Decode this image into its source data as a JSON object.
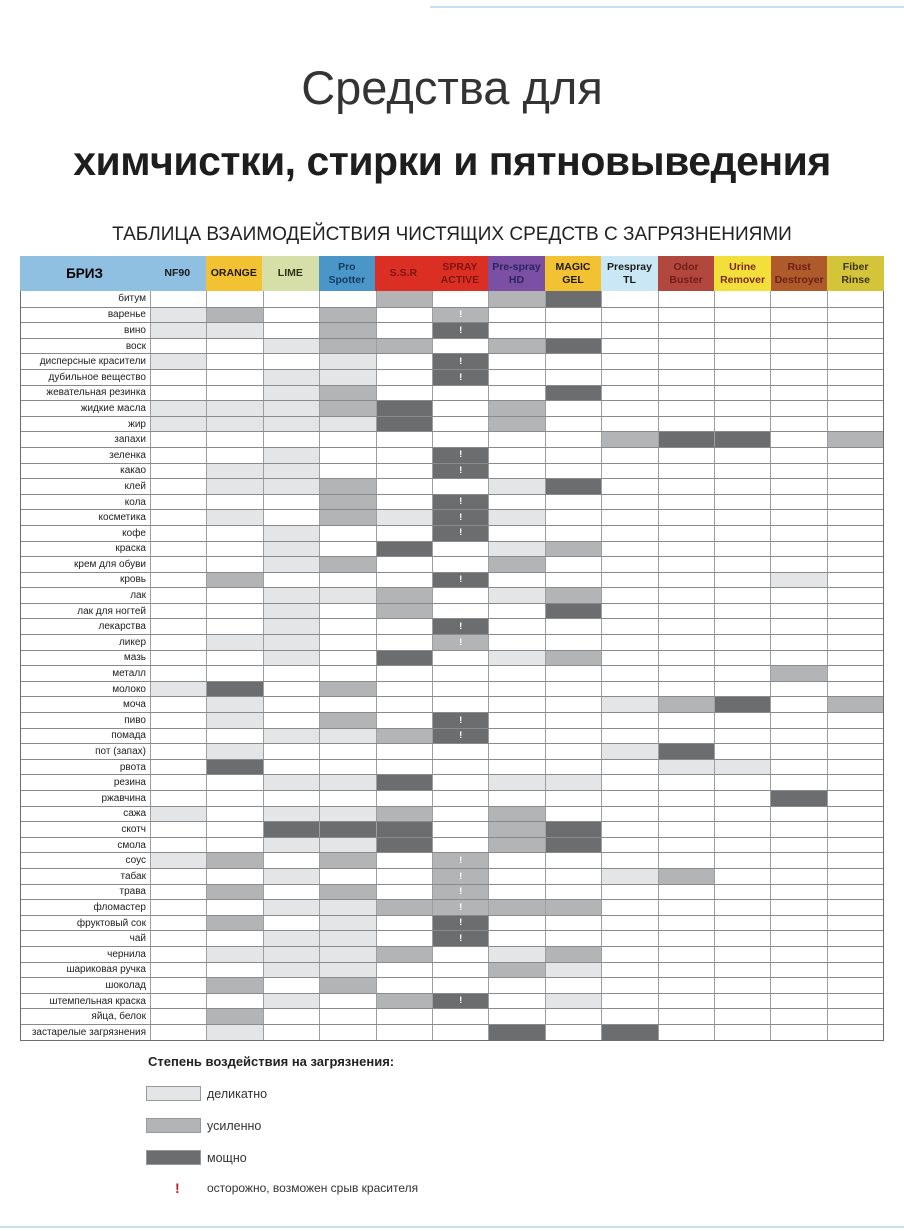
{
  "title_line1": "Средства для",
  "title_line2": "химчистки, стирки и пятновыведения",
  "subtitle": "ТАБЛИЦА ВЗАИМОДЕЙСТВИЯ ЧИСТЯЩИХ СРЕДСТВ С ЗАГРЯЗНЕНИЯМИ",
  "table": {
    "brand_header": "БРИЗ",
    "brand_bg": "#8fc0e2",
    "columns": [
      {
        "label": "NF90",
        "bg": "#8fc0e2",
        "fg": "#1a1a1a"
      },
      {
        "label": "ORANGE",
        "bg": "#f2c233",
        "fg": "#201a08"
      },
      {
        "label": "LIME",
        "bg": "#d6dfa8",
        "fg": "#2b331a"
      },
      {
        "label": "Pro Spotter",
        "bg": "#4b96c9",
        "fg": "#143a5e"
      },
      {
        "label": "S.S.R",
        "bg": "#dc2f23",
        "fg": "#7d1511"
      },
      {
        "label": "SPRAY ACTIVE",
        "bg": "#dc2f23",
        "fg": "#7d1511"
      },
      {
        "label": "Pre-spray HD",
        "bg": "#7b4fa3",
        "fg": "#2a2560"
      },
      {
        "label": "MAGIC GEL",
        "bg": "#f2c233",
        "fg": "#201a08"
      },
      {
        "label": "Prespray TL",
        "bg": "#c9e7f5",
        "fg": "#1a1a1a"
      },
      {
        "label": "Odor Buster",
        "bg": "#b2473e",
        "fg": "#701d18"
      },
      {
        "label": "Urine Remover",
        "bg": "#f3df39",
        "fg": "#79291e"
      },
      {
        "label": "Rust Destroyer",
        "bg": "#ae5a2a",
        "fg": "#6b2018"
      },
      {
        "label": "Fiber Rinse",
        "bg": "#d4c43a",
        "fg": "#3c3512"
      }
    ],
    "legend_levels": {
      "1": "деликатно",
      "2": "усиленно",
      "3": "мощно"
    },
    "rows": [
      {
        "label": "битум",
        "cells": [
          "",
          "",
          "",
          "",
          "2",
          "",
          "2",
          "3",
          "",
          "",
          "",
          "",
          ""
        ]
      },
      {
        "label": "варенье",
        "cells": [
          "1",
          "2",
          "",
          "2",
          "",
          "2!",
          "",
          "",
          "",
          "",
          "",
          "",
          ""
        ]
      },
      {
        "label": "вино",
        "cells": [
          "1",
          "1",
          "",
          "2",
          "",
          "3!",
          "",
          "",
          "",
          "",
          "",
          "",
          ""
        ]
      },
      {
        "label": "воск",
        "cells": [
          "",
          "",
          "1",
          "2",
          "2",
          "",
          "2",
          "3",
          "",
          "",
          "",
          "",
          ""
        ]
      },
      {
        "label": "дисперсные красители",
        "cells": [
          "1",
          "",
          "",
          "1",
          "",
          "3!",
          "",
          "",
          "",
          "",
          "",
          "",
          ""
        ]
      },
      {
        "label": "дубильное вещество",
        "cells": [
          "",
          "",
          "1",
          "1",
          "",
          "3!",
          "",
          "",
          "",
          "",
          "",
          "",
          ""
        ]
      },
      {
        "label": "жевательная резинка",
        "cells": [
          "",
          "",
          "1",
          "2",
          "",
          "",
          "",
          "3",
          "",
          "",
          "",
          "",
          ""
        ]
      },
      {
        "label": "жидкие масла",
        "cells": [
          "1",
          "1",
          "1",
          "2",
          "3",
          "",
          "2",
          "",
          "",
          "",
          "",
          "",
          ""
        ]
      },
      {
        "label": "жир",
        "cells": [
          "1",
          "1",
          "1",
          "1",
          "3",
          "",
          "2",
          "",
          "",
          "",
          "",
          "",
          ""
        ]
      },
      {
        "label": "запахи",
        "cells": [
          "",
          "",
          "",
          "",
          "",
          "",
          "",
          "",
          "2",
          "3",
          "3",
          "",
          "2"
        ]
      },
      {
        "label": "зеленка",
        "cells": [
          "",
          "",
          "1",
          "",
          "",
          "3!",
          "",
          "",
          "",
          "",
          "",
          "",
          ""
        ]
      },
      {
        "label": "какао",
        "cells": [
          "",
          "1",
          "1",
          "",
          "",
          "3!",
          "",
          "",
          "",
          "",
          "",
          "",
          ""
        ]
      },
      {
        "label": "клей",
        "cells": [
          "",
          "1",
          "1",
          "2",
          "",
          "",
          "1",
          "3",
          "",
          "",
          "",
          "",
          ""
        ]
      },
      {
        "label": "кола",
        "cells": [
          "",
          "",
          "",
          "2",
          "",
          "3!",
          "",
          "",
          "",
          "",
          "",
          "",
          ""
        ]
      },
      {
        "label": "косметика",
        "cells": [
          "",
          "1",
          "",
          "2",
          "1",
          "3!",
          "1",
          "",
          "",
          "",
          "",
          "",
          ""
        ]
      },
      {
        "label": "кофе",
        "cells": [
          "",
          "",
          "1",
          "",
          "",
          "3!",
          "",
          "",
          "",
          "",
          "",
          "",
          ""
        ]
      },
      {
        "label": "краска",
        "cells": [
          "",
          "",
          "1",
          "",
          "3",
          "",
          "1",
          "2",
          "",
          "",
          "",
          "",
          ""
        ]
      },
      {
        "label": "крем для обуви",
        "cells": [
          "",
          "",
          "1",
          "2",
          "",
          "",
          "2",
          "",
          "",
          "",
          "",
          "",
          ""
        ]
      },
      {
        "label": "кровь",
        "cells": [
          "",
          "2",
          "",
          "",
          "",
          "3!",
          "",
          "",
          "",
          "",
          "",
          "1",
          ""
        ]
      },
      {
        "label": "лак",
        "cells": [
          "",
          "",
          "1",
          "1",
          "2",
          "",
          "1",
          "2",
          "",
          "",
          "",
          "",
          ""
        ]
      },
      {
        "label": "лак для ногтей",
        "cells": [
          "",
          "",
          "1",
          "",
          "2",
          "",
          "",
          "3",
          "",
          "",
          "",
          "",
          ""
        ]
      },
      {
        "label": "лекарства",
        "cells": [
          "",
          "",
          "1",
          "",
          "",
          "3!",
          "",
          "",
          "",
          "",
          "",
          "",
          ""
        ]
      },
      {
        "label": "ликер",
        "cells": [
          "",
          "1",
          "1",
          "",
          "",
          "2!",
          "",
          "",
          "",
          "",
          "",
          "",
          ""
        ]
      },
      {
        "label": "мазь",
        "cells": [
          "",
          "",
          "1",
          "",
          "3",
          "",
          "1",
          "2",
          "",
          "",
          "",
          "",
          ""
        ]
      },
      {
        "label": "металл",
        "cells": [
          "",
          "",
          "",
          "",
          "",
          "",
          "",
          "",
          "",
          "",
          "",
          "2",
          ""
        ]
      },
      {
        "label": "молоко",
        "cells": [
          "1",
          "3",
          "",
          "2",
          "",
          "",
          "",
          "",
          "",
          "",
          "",
          "",
          ""
        ]
      },
      {
        "label": "моча",
        "cells": [
          "",
          "1",
          "",
          "",
          "",
          "",
          "",
          "",
          "1",
          "2",
          "3",
          "",
          "2"
        ]
      },
      {
        "label": "пиво",
        "cells": [
          "",
          "1",
          "",
          "2",
          "",
          "3!",
          "",
          "",
          "",
          "",
          "",
          "",
          ""
        ]
      },
      {
        "label": "помада",
        "cells": [
          "",
          "",
          "1",
          "1",
          "2",
          "3!",
          "",
          "",
          "",
          "",
          "",
          "",
          ""
        ]
      },
      {
        "label": "пот (запах)",
        "cells": [
          "",
          "1",
          "",
          "",
          "",
          "",
          "",
          "",
          "1",
          "3",
          "",
          "",
          ""
        ]
      },
      {
        "label": "рвота",
        "cells": [
          "",
          "3",
          "",
          "",
          "",
          "",
          "",
          "",
          "",
          "1",
          "1",
          "",
          ""
        ]
      },
      {
        "label": "резина",
        "cells": [
          "",
          "",
          "1",
          "1",
          "3",
          "",
          "1",
          "1",
          "",
          "",
          "",
          "",
          ""
        ]
      },
      {
        "label": "ржавчина",
        "cells": [
          "",
          "",
          "",
          "",
          "",
          "",
          "",
          "",
          "",
          "",
          "",
          "3",
          ""
        ]
      },
      {
        "label": "сажа",
        "cells": [
          "1",
          "",
          "1",
          "1",
          "2",
          "",
          "2",
          "",
          "",
          "",
          "",
          "",
          ""
        ]
      },
      {
        "label": "скотч",
        "cells": [
          "",
          "",
          "3",
          "3",
          "3",
          "",
          "2",
          "3",
          "",
          "",
          "",
          "",
          ""
        ]
      },
      {
        "label": "смола",
        "cells": [
          "",
          "",
          "1",
          "1",
          "3",
          "",
          "2",
          "3",
          "",
          "",
          "",
          "",
          ""
        ]
      },
      {
        "label": "соус",
        "cells": [
          "1",
          "2",
          "",
          "2",
          "",
          "2!",
          "",
          "",
          "",
          "",
          "",
          "",
          ""
        ]
      },
      {
        "label": "табак",
        "cells": [
          "",
          "",
          "1",
          "",
          "",
          "2!",
          "",
          "",
          "1",
          "2",
          "",
          "",
          ""
        ]
      },
      {
        "label": "трава",
        "cells": [
          "",
          "2",
          "",
          "2",
          "",
          "2!",
          "",
          "",
          "",
          "",
          "",
          "",
          ""
        ]
      },
      {
        "label": "фломастер",
        "cells": [
          "",
          "",
          "1",
          "1",
          "2",
          "2!",
          "2",
          "2",
          "",
          "",
          "",
          "",
          ""
        ]
      },
      {
        "label": "фруктовый сок",
        "cells": [
          "",
          "2",
          "",
          "1",
          "",
          "3!",
          "",
          "",
          "",
          "",
          "",
          "",
          ""
        ]
      },
      {
        "label": "чай",
        "cells": [
          "",
          "",
          "1",
          "1",
          "",
          "3!",
          "",
          "",
          "",
          "",
          "",
          "",
          ""
        ]
      },
      {
        "label": "чернила",
        "cells": [
          "",
          "1",
          "1",
          "1",
          "2",
          "",
          "1",
          "2",
          "",
          "",
          "",
          "",
          ""
        ]
      },
      {
        "label": "шариковая ручка",
        "cells": [
          "",
          "",
          "1",
          "1",
          "",
          "",
          "2",
          "1",
          "",
          "",
          "",
          "",
          ""
        ]
      },
      {
        "label": "шоколад",
        "cells": [
          "",
          "2",
          "",
          "2",
          "",
          "",
          "",
          "",
          "",
          "",
          "",
          "",
          ""
        ]
      },
      {
        "label": "штемпельная краска",
        "cells": [
          "",
          "",
          "1",
          "",
          "2",
          "3!",
          "",
          "1",
          "",
          "",
          "",
          "",
          ""
        ]
      },
      {
        "label": "яйца, белок",
        "cells": [
          "",
          "2",
          "",
          "",
          "",
          "",
          "",
          "",
          "",
          "",
          "",
          "",
          ""
        ]
      },
      {
        "label": "застарелые загрязнения",
        "cells": [
          "",
          "1",
          "",
          "",
          "",
          "",
          "3",
          "",
          "3",
          "",
          "",
          "",
          ""
        ]
      }
    ]
  },
  "legend": {
    "heading": "Степень воздействия на загрязнения:",
    "items": [
      {
        "level": "1",
        "label": "деликатно"
      },
      {
        "level": "2",
        "label": "усиленно"
      },
      {
        "level": "3",
        "label": "мощно"
      }
    ],
    "warning_symbol": "!",
    "warning_text": "осторожно, возможен срыв красителя"
  },
  "colors": {
    "delicate": "#e4e5e7",
    "strong": "#b2b4b6",
    "power": "#6b6d6e",
    "warning_red": "#b5251f",
    "brand_blue": "#8fc0e2"
  }
}
